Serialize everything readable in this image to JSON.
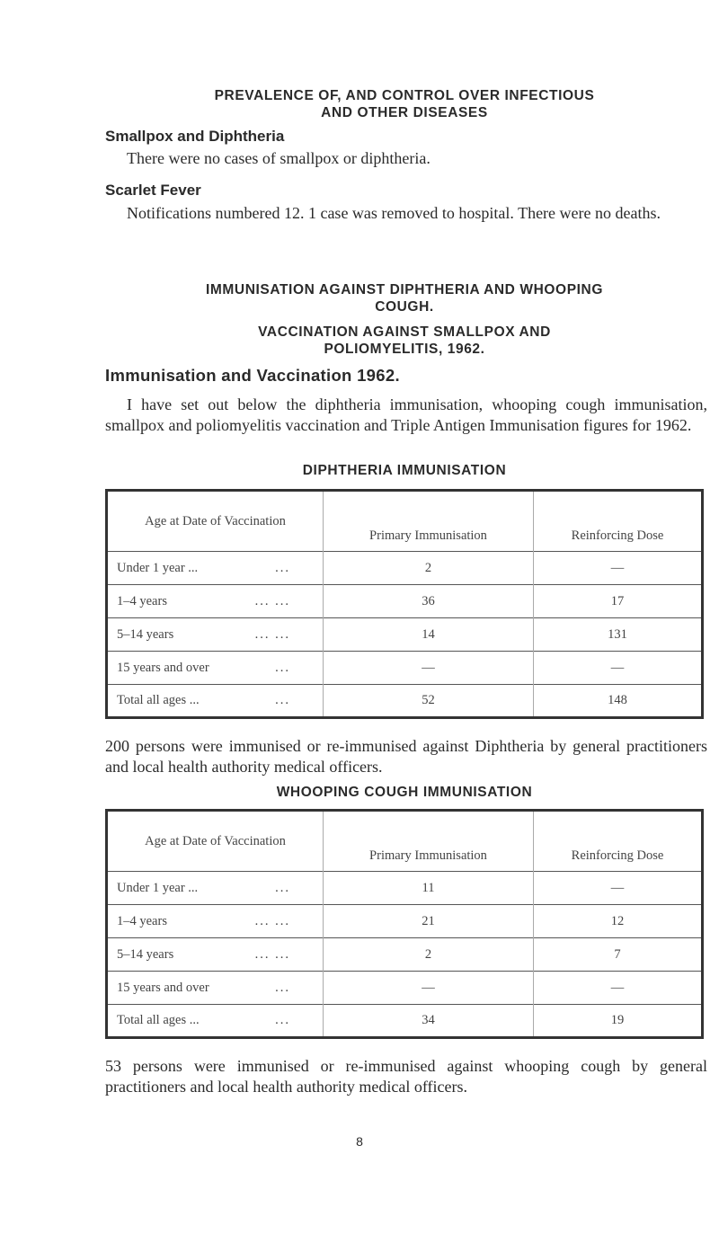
{
  "title": [
    "PREVALENCE OF, AND CONTROL OVER INFECTIOUS",
    "AND OTHER DISEASES"
  ],
  "smallpox": {
    "heading": "Smallpox and Diphtheria",
    "text": "There were no cases of smallpox or diphtheria."
  },
  "scarlet": {
    "heading": "Scarlet Fever",
    "text": "Notifications numbered 12. 1 case was removed to hospital. There were no deaths."
  },
  "heading_immunisation": [
    "IMMUNISATION AGAINST DIPHTHERIA AND WHOOPING",
    "COUGH."
  ],
  "heading_vaccination": [
    "VACCINATION AGAINST SMALLPOX AND",
    "POLIOMYELITIS, 1962."
  ],
  "section_title": "Immunisation and Vaccination 1962.",
  "intro": "I have set out below the diphtheria immunisation, whooping cough immunisation, smallpox and poliomyelitis vaccination and Triple Antigen Immunisation figures for 1962.",
  "diphtheria": {
    "title": "DIPHTHERIA IMMUNISATION",
    "headers": [
      "Age at Date of Vaccination",
      "Primary Immunisation",
      "Reinforcing Dose"
    ],
    "rows": [
      [
        "Under 1 year ...",
        "...",
        "2",
        "—"
      ],
      [
        "1–4 years",
        "... ...",
        "36",
        "17"
      ],
      [
        "5–14 years",
        "... ...",
        "14",
        "131"
      ],
      [
        "15 years and over",
        "...",
        "—",
        "—"
      ],
      [
        "Total all ages ...",
        "...",
        "52",
        "148"
      ]
    ],
    "note": "200 persons were immunised or re-immunised against Diphtheria by general practitioners and local health authority medical officers."
  },
  "whooping": {
    "title": "WHOOPING COUGH IMMUNISATION",
    "headers": [
      "Age at Date of Vaccination",
      "Primary Immunisation",
      "Reinforcing Dose"
    ],
    "rows": [
      [
        "Under 1 year ...",
        "...",
        "11",
        "—"
      ],
      [
        "1–4 years",
        "... ...",
        "21",
        "12"
      ],
      [
        "5–14 years",
        "... ...",
        "2",
        "7"
      ],
      [
        "15 years and over",
        "...",
        "—",
        "—"
      ],
      [
        "Total all ages ...",
        "...",
        "34",
        "19"
      ]
    ],
    "note": "53 persons were immunised or re-immunised against whooping cough by general practitioners and local health authority medical officers."
  },
  "page_number": "8"
}
